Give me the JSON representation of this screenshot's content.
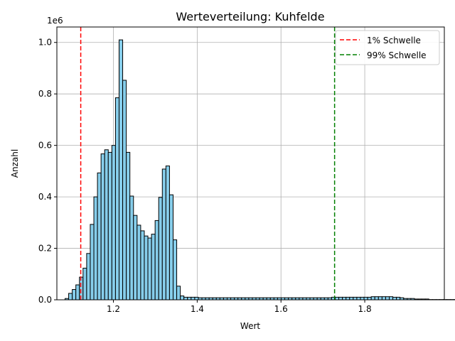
{
  "chart_data": {
    "type": "bar",
    "title": "Werteverteilung: Kuhfelde",
    "xlabel": "Wert",
    "ylabel": "Anzahl",
    "y_multiplier_label": "1e6",
    "xlim": [
      1.065,
      1.99
    ],
    "ylim": [
      0,
      1.06
    ],
    "y_unit_scale": 1000000,
    "grid": true,
    "legend_position": "top-right",
    "x_ticks": [
      {
        "value": 1.2,
        "label": "1.2"
      },
      {
        "value": 1.4,
        "label": "1.4"
      },
      {
        "value": 1.6,
        "label": "1.6"
      },
      {
        "value": 1.8,
        "label": "1.8"
      }
    ],
    "y_ticks": [
      {
        "value": 0.0,
        "label": "0.0"
      },
      {
        "value": 0.2,
        "label": "0.2"
      },
      {
        "value": 0.4,
        "label": "0.4"
      },
      {
        "value": 0.6,
        "label": "0.6"
      },
      {
        "value": 0.8,
        "label": "0.8"
      },
      {
        "value": 1.0,
        "label": "1.0"
      }
    ],
    "bin_start": 1.0845,
    "bin_width": 0.0086,
    "bin_values": [
      0.005,
      0.025,
      0.04,
      0.058,
      0.088,
      0.123,
      0.18,
      0.293,
      0.4,
      0.493,
      0.567,
      0.583,
      0.573,
      0.6,
      0.785,
      1.01,
      0.853,
      0.573,
      0.403,
      0.328,
      0.29,
      0.268,
      0.248,
      0.24,
      0.255,
      0.308,
      0.398,
      0.508,
      0.52,
      0.408,
      0.233,
      0.053,
      0.015,
      0.01,
      0.01,
      0.01,
      0.01,
      0.008,
      0.008,
      0.008,
      0.008,
      0.008,
      0.008,
      0.008,
      0.008,
      0.008,
      0.008,
      0.008,
      0.008,
      0.008,
      0.008,
      0.008,
      0.008,
      0.008,
      0.008,
      0.008,
      0.008,
      0.008,
      0.008,
      0.008,
      0.008,
      0.008,
      0.008,
      0.008,
      0.008,
      0.008,
      0.008,
      0.008,
      0.008,
      0.008,
      0.008,
      0.008,
      0.008,
      0.008,
      0.01,
      0.01,
      0.01,
      0.01,
      0.01,
      0.01,
      0.01,
      0.01,
      0.01,
      0.01,
      0.01,
      0.012,
      0.012,
      0.012,
      0.012,
      0.012,
      0.012,
      0.01,
      0.01,
      0.008,
      0.005,
      0.005,
      0.005,
      0.003,
      0.003,
      0.003,
      0.003,
      0.001,
      0.001,
      0.001,
      0.001,
      0.001,
      0.001,
      0.001,
      0.001,
      0.001,
      0.001,
      0.001
    ],
    "bar_color": "#87ceeb",
    "bar_edge_color": "#000000",
    "reference_lines": [
      {
        "name": "1% Schwelle",
        "x": 1.122,
        "color": "#ff0000"
      },
      {
        "name": "99% Schwelle",
        "x": 1.728,
        "color": "#008000"
      }
    ]
  }
}
